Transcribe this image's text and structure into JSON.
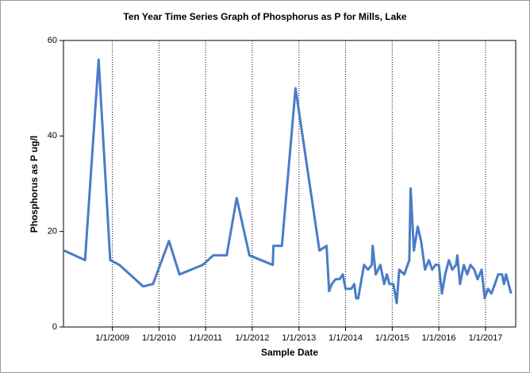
{
  "chart_data": {
    "type": "line",
    "title": "Ten Year Time Series Graph of Phosphorus as P for Mills, Lake",
    "x_label": "Sample Date",
    "y_label": "Phosphorus as P ug/l",
    "grid": "x",
    "x": [
      "2007-12-20",
      "2008-06-01",
      "2008-09-15",
      "2008-12-15",
      "2009-02-25",
      "2009-08-30",
      "2009-11-15",
      "2010-03-20",
      "2010-06-10",
      "2010-12-10",
      "2011-03-01",
      "2011-06-15",
      "2011-09-01",
      "2011-12-10",
      "2012-06-10",
      "2012-06-15",
      "2012-08-20",
      "2012-12-05",
      "2013-06-10",
      "2013-08-05",
      "2013-08-25",
      "2013-09-15",
      "2013-10-15",
      "2013-11-15",
      "2013-12-10",
      "2014-01-01",
      "2014-02-15",
      "2014-03-10",
      "2014-03-25",
      "2014-04-10",
      "2014-05-25",
      "2014-06-25",
      "2014-07-25",
      "2014-08-01",
      "2014-08-25",
      "2014-09-30",
      "2014-10-30",
      "2014-11-20",
      "2014-12-10",
      "2015-01-10",
      "2015-02-05",
      "2015-02-25",
      "2015-04-05",
      "2015-05-15",
      "2015-05-25",
      "2015-06-20",
      "2015-07-20",
      "2015-08-15",
      "2015-09-15",
      "2015-10-15",
      "2015-11-10",
      "2015-12-05",
      "2016-01-01",
      "2016-01-25",
      "2016-02-20",
      "2016-03-20",
      "2016-04-15",
      "2016-05-15",
      "2016-05-25",
      "2016-06-15",
      "2016-07-15",
      "2016-08-10",
      "2016-09-05",
      "2016-10-05",
      "2016-10-30",
      "2016-12-01",
      "2016-12-25",
      "2017-01-20",
      "2017-02-15",
      "2017-03-15",
      "2017-04-10",
      "2017-05-10",
      "2017-05-25",
      "2017-06-10",
      "2017-07-20"
    ],
    "series": [
      {
        "name": "Phosphorus as P",
        "color": "#4a7cc7",
        "values": [
          16,
          14,
          56,
          14,
          13,
          8.5,
          9,
          18,
          11,
          13,
          15,
          15,
          27,
          15,
          13,
          17,
          17,
          50,
          16,
          17,
          7.5,
          9,
          10,
          10,
          11,
          8,
          8,
          9,
          6,
          6,
          13,
          12,
          13,
          17,
          11,
          13,
          9,
          11,
          9,
          9,
          5,
          12,
          11,
          14,
          29,
          16,
          21,
          18,
          12,
          14,
          12,
          13,
          13,
          7,
          11,
          14,
          12,
          13,
          15,
          9,
          13,
          11,
          13,
          12,
          10,
          12,
          6,
          8,
          7,
          9,
          11,
          11,
          9,
          11,
          7
        ]
      }
    ],
    "xlim": [
      "2007-12-15",
      "2017-08-25"
    ],
    "xticks": [
      {
        "value": "2009-01-01",
        "label": "1/1/2009"
      },
      {
        "value": "2010-01-01",
        "label": "1/1/2010"
      },
      {
        "value": "2011-01-01",
        "label": "1/1/2011"
      },
      {
        "value": "2012-01-01",
        "label": "1/1/2012"
      },
      {
        "value": "2013-01-01",
        "label": "1/1/2013"
      },
      {
        "value": "2014-01-01",
        "label": "1/1/2014"
      },
      {
        "value": "2015-01-01",
        "label": "1/1/2015"
      },
      {
        "value": "2016-01-01",
        "label": "1/1/2016"
      },
      {
        "value": "2017-01-01",
        "label": "1/1/2017"
      }
    ],
    "ylim": [
      0,
      60
    ],
    "yticks": [
      0,
      20,
      40,
      60
    ]
  }
}
